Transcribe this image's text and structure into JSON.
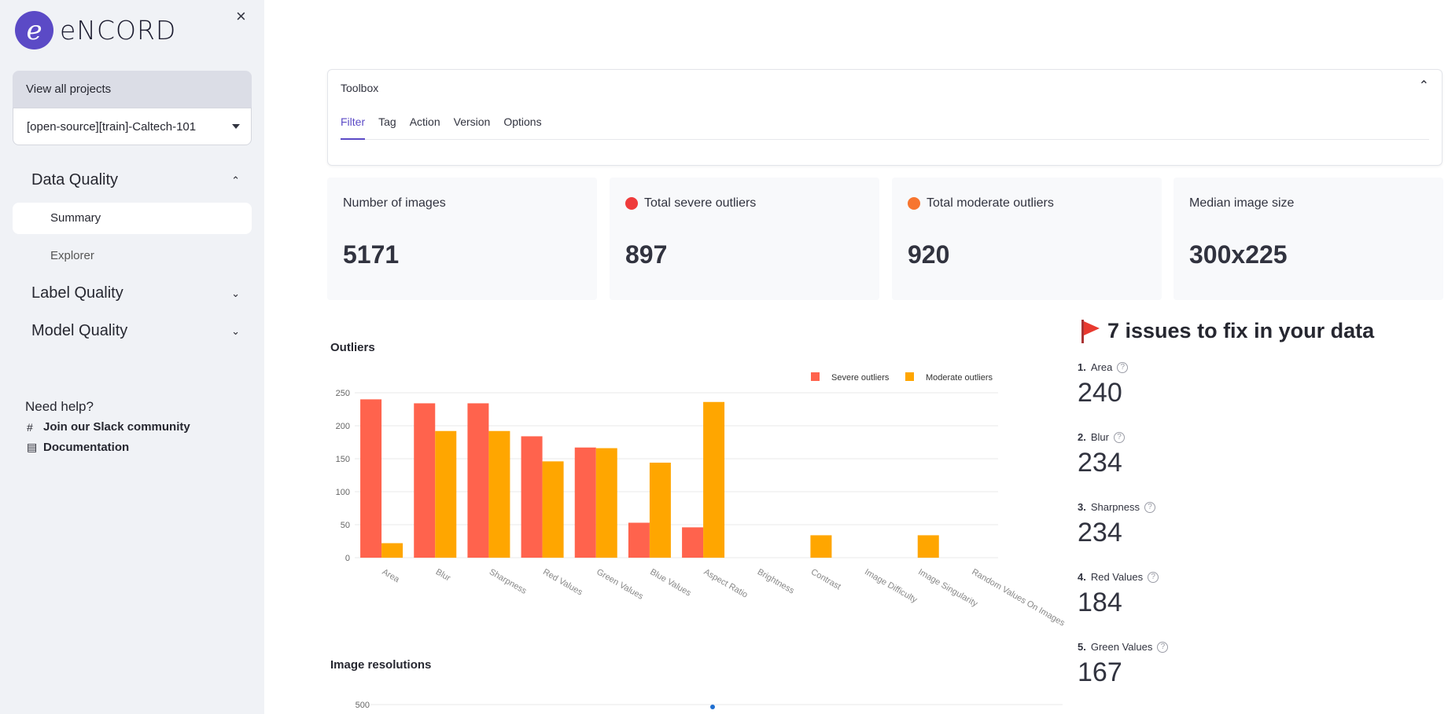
{
  "sidebar": {
    "logo_mark": "e",
    "logo_text": "eNCORD",
    "close_icon": "×",
    "view_all_label": "View all projects",
    "project_value": "[open-source][train]-Caltech-101",
    "sections": [
      {
        "label": "Data Quality",
        "expanded": true
      },
      {
        "label": "Label Quality",
        "expanded": false
      },
      {
        "label": "Model Quality",
        "expanded": false
      }
    ],
    "sub_items": [
      {
        "label": "Summary",
        "active": true
      },
      {
        "label": "Explorer",
        "active": false
      }
    ],
    "help_title": "Need help?",
    "help_links": [
      {
        "label": "Join our Slack community",
        "icon": "slack-icon"
      },
      {
        "label": "Documentation",
        "icon": "book-icon"
      }
    ]
  },
  "toolbox": {
    "title": "Toolbox",
    "tabs": [
      "Filter",
      "Tag",
      "Action",
      "Version",
      "Options"
    ],
    "active_tab": "Filter"
  },
  "metrics": [
    {
      "label": "Number of images",
      "value": "5171",
      "dot_color": ""
    },
    {
      "label": "Total severe outliers",
      "value": "897",
      "dot_color": "#ef3b3b"
    },
    {
      "label": "Total moderate outliers",
      "value": "920",
      "dot_color": "#f7752f"
    },
    {
      "label": "Median image size",
      "value": "300x225",
      "dot_color": ""
    }
  ],
  "issues": {
    "title": "7 issues to fix in your data",
    "items": [
      {
        "rank": "1.",
        "name": "Area",
        "value": "240"
      },
      {
        "rank": "2.",
        "name": "Blur",
        "value": "234"
      },
      {
        "rank": "3.",
        "name": "Sharpness",
        "value": "234"
      },
      {
        "rank": "4.",
        "name": "Red Values",
        "value": "184"
      },
      {
        "rank": "5.",
        "name": "Green Values",
        "value": "167"
      }
    ]
  },
  "colors": {
    "severe": "#ff634d",
    "moderate": "#ffa600",
    "accent": "#5b4ac6"
  },
  "chart_data": [
    {
      "type": "bar",
      "title": "Outliers",
      "categories": [
        "Area",
        "Blur",
        "Sharpness",
        "Red Values",
        "Green Values",
        "Blue Values",
        "Aspect Ratio",
        "Brightness",
        "Contrast",
        "Image Difficulty",
        "Image Singularity",
        "Random Values On Images"
      ],
      "series": [
        {
          "name": "Severe outliers",
          "values": [
            240,
            234,
            234,
            184,
            167,
            53,
            46,
            0,
            0,
            0,
            0,
            0
          ]
        },
        {
          "name": "Moderate outliers",
          "values": [
            22,
            192,
            192,
            146,
            166,
            144,
            236,
            0,
            34,
            0,
            34,
            0
          ]
        }
      ],
      "yticks": [
        0,
        50,
        100,
        150,
        200,
        250
      ],
      "ylim": [
        0,
        250
      ],
      "legend": "top-right",
      "grid": true
    },
    {
      "type": "scatter",
      "title": "Image resolutions",
      "yticks": [
        500
      ]
    }
  ]
}
